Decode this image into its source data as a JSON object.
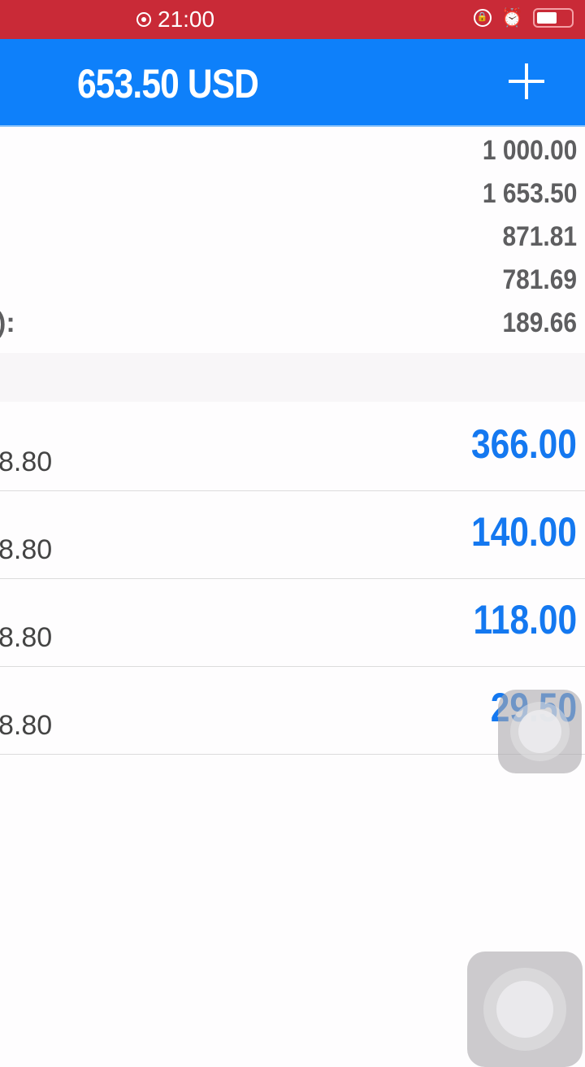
{
  "status_bar": {
    "time": "21:00",
    "icons": [
      "record-icon",
      "rotation-lock-icon",
      "alarm-icon",
      "battery-icon"
    ]
  },
  "header": {
    "title": "653.50 USD",
    "add_icon": "plus-icon"
  },
  "summary": {
    "values": [
      "1 000.00",
      "1 653.50",
      "871.81",
      "781.69",
      "189.66"
    ],
    "partial_label": "):"
  },
  "rows": [
    {
      "left": "8.80",
      "right": "366.00"
    },
    {
      "left": "8.80",
      "right": "140.00"
    },
    {
      "left": "8.80",
      "right": "118.00"
    },
    {
      "left": "8.80",
      "right": "29.50"
    }
  ],
  "colors": {
    "status_bar": "#c92a37",
    "header": "#0e80fa",
    "accent_value": "#1478f0"
  }
}
